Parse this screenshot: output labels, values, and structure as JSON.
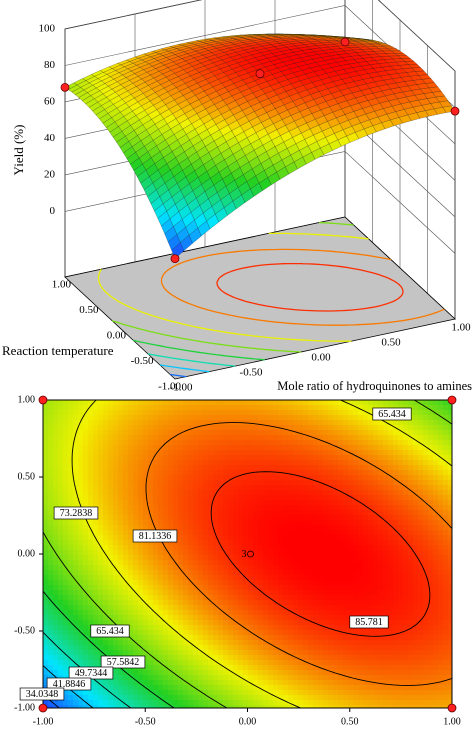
{
  "chart_data": [
    {
      "type": "surface",
      "xlabel": "Mole ratio of hydroquinones to amines",
      "ylabel": "Reaction temperature",
      "zlabel": "Yield (%)",
      "x": [
        -1,
        -0.5,
        0,
        0.5,
        1
      ],
      "y": [
        -1,
        -0.5,
        0,
        0.5,
        1
      ],
      "z": [
        [
          30,
          52.5,
          68,
          76.5,
          78
        ],
        [
          50,
          69,
          81,
          86,
          84
        ],
        [
          63,
          78.5,
          87,
          88.5,
          83
        ],
        [
          69,
          81,
          86,
          84,
          75
        ],
        [
          68,
          76.5,
          78,
          72.5,
          60
        ]
      ],
      "xlim": [
        -1,
        1
      ],
      "ylim": [
        -1,
        1
      ],
      "zlim": [
        -36,
        100
      ],
      "xticks": [
        {
          "value": -1,
          "label": "-1.00"
        },
        {
          "value": -0.5,
          "label": "-0.50"
        },
        {
          "value": 0,
          "label": "0.00"
        },
        {
          "value": 0.5,
          "label": "0.50"
        },
        {
          "value": 1,
          "label": "1.00"
        }
      ],
      "yticks": [
        {
          "value": -1,
          "label": "-1.00"
        },
        {
          "value": -0.5,
          "label": "-0.50"
        },
        {
          "value": 0,
          "label": "0.00"
        },
        {
          "value": 0.5,
          "label": "0.50"
        },
        {
          "value": 1,
          "label": "1.00"
        }
      ],
      "zticks": [
        0,
        20,
        40,
        60,
        80,
        100
      ],
      "levels": [
        85.781,
        81.1336,
        73.2838,
        65.434,
        57.5842,
        49.7344,
        41.8846,
        34.0348
      ],
      "colormap": [
        "#1a3cff",
        "#00e5ff",
        "#22d022",
        "#f2f200",
        "#ff0000"
      ],
      "design_points": {
        "x": [
          -1,
          1,
          -1,
          1,
          0
        ],
        "y": [
          1,
          1,
          -1,
          -1,
          0
        ]
      }
    },
    {
      "type": "contour",
      "x": [
        -1,
        -0.5,
        0,
        0.5,
        1
      ],
      "y": [
        -1,
        -0.5,
        0,
        0.5,
        1
      ],
      "z": [
        [
          30,
          52.5,
          68,
          76.5,
          78
        ],
        [
          50,
          69,
          81,
          86,
          84
        ],
        [
          63,
          78.5,
          87,
          88.5,
          83
        ],
        [
          69,
          81,
          86,
          84,
          75
        ],
        [
          68,
          76.5,
          78,
          72.5,
          60
        ]
      ],
      "xlim": [
        -1,
        1
      ],
      "ylim": [
        -1,
        1
      ],
      "xticks": [
        {
          "value": -1,
          "label": "-1.00"
        },
        {
          "value": -0.5,
          "label": "-0.50"
        },
        {
          "value": 0,
          "label": "0.00"
        },
        {
          "value": 0.5,
          "label": "0.50"
        },
        {
          "value": 1,
          "label": "1.00"
        }
      ],
      "yticks": [
        {
          "value": -1,
          "label": "-1.00"
        },
        {
          "value": -0.5,
          "label": "-0.50"
        },
        {
          "value": 0,
          "label": "0.00"
        },
        {
          "value": 0.5,
          "label": "0.50"
        },
        {
          "value": 1,
          "label": "1.00"
        }
      ],
      "levels": [
        85.781,
        81.1336,
        73.2838,
        65.434,
        57.5842,
        49.7344,
        41.8846,
        34.0348
      ],
      "colormap": [
        "#1a3cff",
        "#00e5ff",
        "#22d022",
        "#f2f200",
        "#ff0000"
      ],
      "design_points": {
        "x": [
          -1,
          1,
          -1,
          1,
          0
        ],
        "y": [
          1,
          1,
          -1,
          -1,
          0
        ]
      },
      "center_count": 3
    }
  ]
}
